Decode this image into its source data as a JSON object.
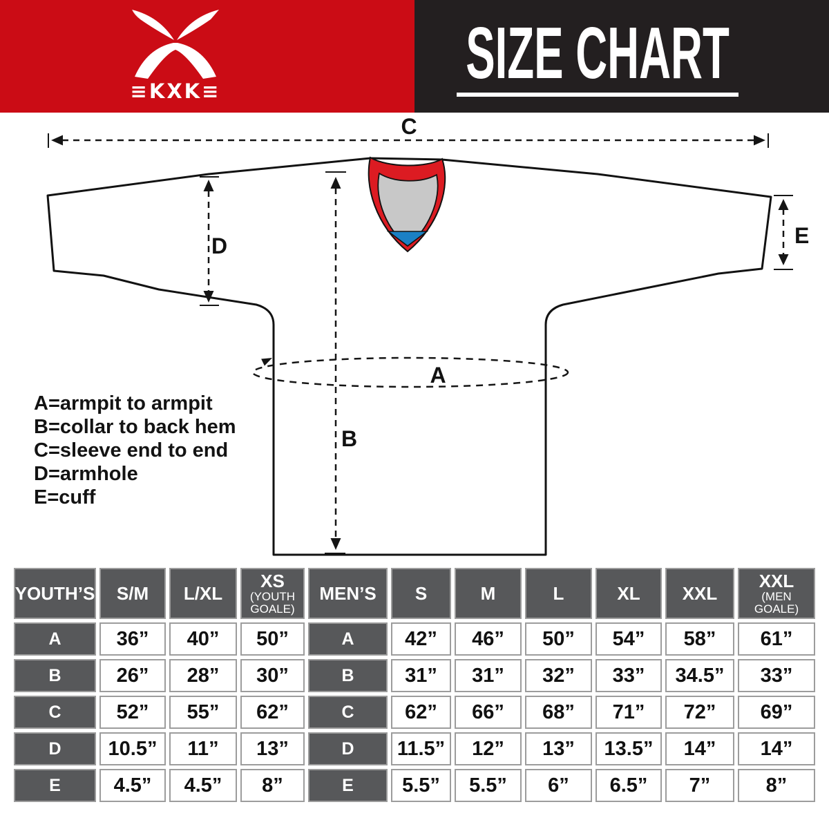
{
  "header": {
    "brand": "KXK",
    "wordmark": "≡KXK≡",
    "title": "SIZE CHART"
  },
  "diagram": {
    "dim_labels": {
      "A": "A",
      "B": "B",
      "C": "C",
      "D": "D",
      "E": "E"
    },
    "legend": [
      "A=armpit to armpit",
      "B=collar to back hem",
      "C=sleeve end to end",
      "D=armhole",
      "E=cuff"
    ]
  },
  "chart_data": {
    "type": "table",
    "tables": [
      {
        "group": "YOUTH’S",
        "columns": [
          {
            "label": "S/M"
          },
          {
            "label": "L/XL"
          },
          {
            "label": "XS",
            "sub": "(YOUTH GOALE)"
          }
        ],
        "rows": [
          {
            "label": "A",
            "values": [
              "36”",
              "40”",
              "50”"
            ]
          },
          {
            "label": "B",
            "values": [
              "26”",
              "28”",
              "30”"
            ]
          },
          {
            "label": "C",
            "values": [
              "52”",
              "55”",
              "62”"
            ]
          },
          {
            "label": "D",
            "values": [
              "10.5”",
              "11”",
              "13”"
            ]
          },
          {
            "label": "E",
            "values": [
              "4.5”",
              "4.5”",
              "8”"
            ]
          }
        ]
      },
      {
        "group": "MEN’S",
        "columns": [
          {
            "label": "S"
          },
          {
            "label": "M"
          },
          {
            "label": "L"
          },
          {
            "label": "XL"
          },
          {
            "label": "XXL"
          },
          {
            "label": "XXL",
            "sub": "(MEN GOALE)"
          }
        ],
        "rows": [
          {
            "label": "A",
            "values": [
              "42”",
              "46”",
              "50”",
              "54”",
              "58”",
              "61”"
            ]
          },
          {
            "label": "B",
            "values": [
              "31”",
              "31”",
              "32”",
              "33”",
              "34.5”",
              "33”"
            ]
          },
          {
            "label": "C",
            "values": [
              "62”",
              "66”",
              "68”",
              "71”",
              "72”",
              "69”"
            ]
          },
          {
            "label": "D",
            "values": [
              "11.5”",
              "12”",
              "13”",
              "13.5”",
              "14”",
              "14”"
            ]
          },
          {
            "label": "E",
            "values": [
              "5.5”",
              "5.5”",
              "6”",
              "6.5”",
              "7”",
              "8”"
            ]
          }
        ]
      }
    ]
  },
  "colors": {
    "brand_red": "#cb0c15",
    "ink": "#231f20",
    "collar_red": "#dc1b22",
    "collar_gray": "#c8c8c8",
    "collar_blue": "#1b80c4",
    "cell_dark": "#57585a",
    "grid_border": "#9c9c9c",
    "line": "#141414"
  }
}
